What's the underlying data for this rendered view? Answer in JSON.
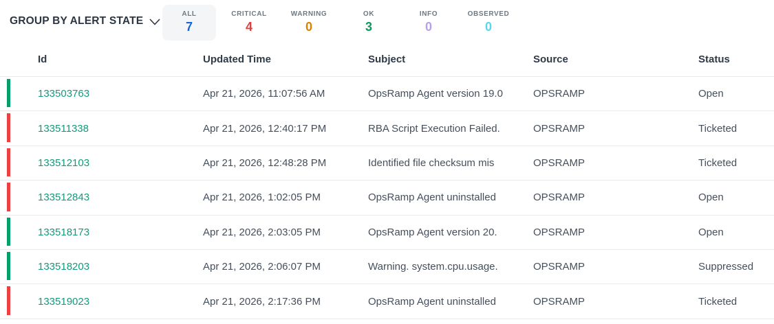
{
  "toolbar": {
    "group_by_label": "GROUP BY ALERT STATE",
    "filters": [
      {
        "label": "ALL",
        "count": "7",
        "color": "#1766d9",
        "active": true
      },
      {
        "label": "CRITICAL",
        "count": "4",
        "color": "#e53c3c",
        "active": false
      },
      {
        "label": "WARNING",
        "count": "0",
        "color": "#dd7f00",
        "active": false
      },
      {
        "label": "OK",
        "count": "3",
        "color": "#0a9a5c",
        "active": false
      },
      {
        "label": "INFO",
        "count": "0",
        "color": "#b5a0f0",
        "active": false
      },
      {
        "label": "OBSERVED",
        "count": "0",
        "color": "#57d7f0",
        "active": false
      }
    ]
  },
  "table": {
    "columns": [
      "Id",
      "Updated Time",
      "Subject",
      "Source",
      "Status"
    ],
    "severity_colors": {
      "ok": "#00a06b",
      "critical": "#ed4040"
    },
    "rows": [
      {
        "severity": "ok",
        "id": "133503763",
        "updated": "Apr 21, 2026, 11:07:56 AM",
        "subject": "OpsRamp Agent version 19.0",
        "source": "OPSRAMP",
        "status": "Open"
      },
      {
        "severity": "critical",
        "id": "133511338",
        "updated": "Apr 21, 2026, 12:40:17 PM",
        "subject": "RBA Script Execution Failed.",
        "source": "OPSRAMP",
        "status": "Ticketed"
      },
      {
        "severity": "critical",
        "id": "133512103",
        "updated": "Apr 21, 2026, 12:48:28 PM",
        "subject": "Identified file checksum mis",
        "source": "OPSRAMP",
        "status": "Ticketed"
      },
      {
        "severity": "critical",
        "id": "133512843",
        "updated": "Apr 21, 2026, 1:02:05 PM",
        "subject": "OpsRamp Agent uninstalled",
        "source": "OPSRAMP",
        "status": "Open"
      },
      {
        "severity": "ok",
        "id": "133518173",
        "updated": "Apr 21, 2026, 2:03:05 PM",
        "subject": "OpsRamp Agent version 20.",
        "source": "OPSRAMP",
        "status": "Open"
      },
      {
        "severity": "ok",
        "id": "133518203",
        "updated": "Apr 21, 2026, 2:06:07 PM",
        "subject": "Warning. system.cpu.usage.",
        "source": "OPSRAMP",
        "status": "Suppressed"
      },
      {
        "severity": "critical",
        "id": "133519023",
        "updated": "Apr 21, 2026, 2:17:36 PM",
        "subject": "OpsRamp Agent uninstalled",
        "source": "OPSRAMP",
        "status": "Ticketed"
      }
    ]
  }
}
